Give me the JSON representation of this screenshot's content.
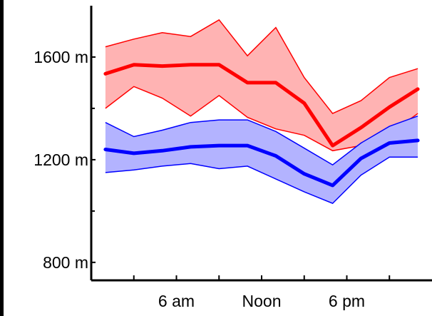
{
  "chart_data": {
    "type": "line",
    "title": "",
    "xlabel": "",
    "ylabel": "",
    "x": [
      1,
      3,
      5,
      7,
      9,
      11,
      13,
      15,
      17,
      19,
      21,
      23
    ],
    "x_range": [
      0,
      24
    ],
    "xticks": [
      {
        "value": 6,
        "label": "6 am"
      },
      {
        "value": 12,
        "label": "Noon"
      },
      {
        "value": 18,
        "label": "6 pm"
      }
    ],
    "yticks": [
      {
        "value": 800,
        "label": "800 m"
      },
      {
        "value": 1200,
        "label": "1200 m"
      },
      {
        "value": 1600,
        "label": "1600 m"
      }
    ],
    "ylim": [
      730,
      1800
    ],
    "grid": false,
    "series": [
      {
        "color": "#ff0000",
        "band_color": "#ffb3b3",
        "mean": [
          1535,
          1570,
          1565,
          1570,
          1570,
          1500,
          1500,
          1420,
          1255,
          1325,
          1405,
          1475
        ],
        "upper": [
          1640,
          1670,
          1695,
          1680,
          1745,
          1605,
          1715,
          1520,
          1380,
          1430,
          1520,
          1555
        ],
        "lower": [
          1400,
          1485,
          1440,
          1370,
          1450,
          1365,
          1320,
          1295,
          1235,
          1255,
          1300,
          1380
        ]
      },
      {
        "color": "#0000ff",
        "band_color": "#b3b3ff",
        "mean": [
          1240,
          1225,
          1235,
          1250,
          1255,
          1255,
          1215,
          1145,
          1100,
          1205,
          1265,
          1275
        ],
        "upper": [
          1345,
          1290,
          1315,
          1345,
          1355,
          1355,
          1310,
          1245,
          1180,
          1265,
          1330,
          1370
        ],
        "lower": [
          1150,
          1160,
          1175,
          1185,
          1165,
          1175,
          1125,
          1075,
          1030,
          1140,
          1210,
          1210
        ]
      }
    ]
  },
  "colors": {
    "background": "#000000",
    "plot_area": "#ffffff",
    "axis": "#000000",
    "label_text": "#000000"
  }
}
